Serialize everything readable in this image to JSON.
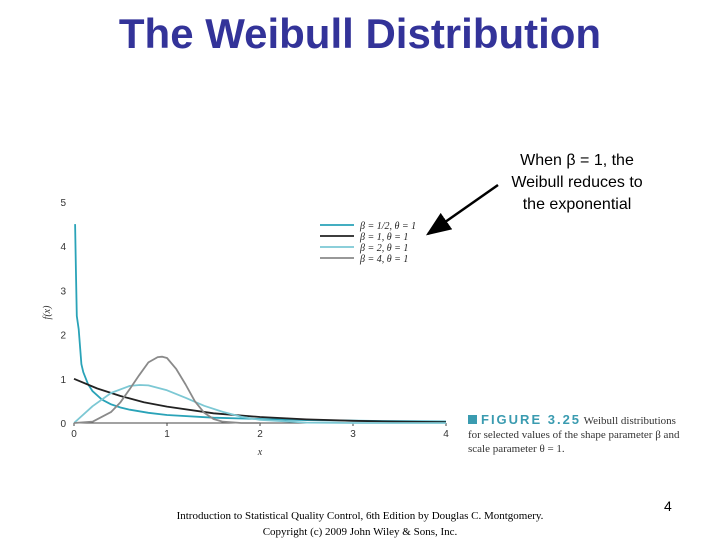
{
  "slide": {
    "title": "The Weibull Distribution",
    "callout": [
      "When β = 1, the",
      "Weibull reduces to",
      "the exponential"
    ],
    "figure_label": "FIGURE 3.25",
    "figure_caption": "Weibull distributions for selected values of the shape parameter β and scale parameter θ = 1.",
    "footer_line1": "Introduction to Statistical Quality Control, 6th Edition by Douglas C. Montgomery.",
    "footer_line2": "Copyright (c) 2009 John Wiley & Sons, Inc.",
    "page_number": "4"
  },
  "chart_data": {
    "type": "line",
    "xlabel": "x",
    "ylabel": "f(x)",
    "xlim": [
      0,
      4
    ],
    "ylim": [
      0,
      5
    ],
    "xticks": [
      0,
      1,
      2,
      3,
      4
    ],
    "yticks": [
      0,
      1,
      2,
      3,
      4,
      5
    ],
    "legend_position": "top-right",
    "series": [
      {
        "name": "β = 1/2, θ = 1",
        "color": "#2aa3b8",
        "x": [
          0.012,
          0.02,
          0.03,
          0.05,
          0.08,
          0.1,
          0.15,
          0.2,
          0.3,
          0.4,
          0.5,
          0.6,
          0.8,
          1.0,
          1.5,
          2.0,
          2.5,
          3.0,
          3.5,
          4.0
        ],
        "y": [
          4.5,
          3.47,
          2.42,
          2.12,
          1.33,
          1.15,
          0.88,
          0.72,
          0.53,
          0.42,
          0.35,
          0.3,
          0.23,
          0.18,
          0.12,
          0.09,
          0.065,
          0.051,
          0.04,
          0.034
        ]
      },
      {
        "name": "β = 1, θ = 1",
        "color": "#222222",
        "x": [
          0,
          0.25,
          0.5,
          0.75,
          1.0,
          1.5,
          2.0,
          2.5,
          3.0,
          3.5,
          4.0
        ],
        "y": [
          1.0,
          0.78,
          0.61,
          0.47,
          0.37,
          0.22,
          0.135,
          0.082,
          0.05,
          0.03,
          0.018
        ]
      },
      {
        "name": "β = 2, θ = 1",
        "color": "#7cc8d4",
        "x": [
          0,
          0.2,
          0.4,
          0.6,
          0.7071,
          0.8,
          1.0,
          1.2,
          1.4,
          1.6,
          1.8,
          2.0,
          2.5,
          3.0,
          4.0
        ],
        "y": [
          0,
          0.38,
          0.68,
          0.84,
          0.86,
          0.85,
          0.74,
          0.57,
          0.39,
          0.25,
          0.14,
          0.07,
          0.01,
          0.0,
          0.0
        ]
      },
      {
        "name": "β = 4, θ = 1",
        "color": "#8a8a8a",
        "x": [
          0,
          0.2,
          0.4,
          0.5,
          0.6,
          0.7,
          0.8,
          0.9,
          0.95,
          1.0,
          1.1,
          1.2,
          1.3,
          1.4,
          1.5,
          1.6,
          1.8,
          2.0
        ],
        "y": [
          0,
          0.03,
          0.25,
          0.47,
          0.77,
          1.08,
          1.37,
          1.49,
          1.5,
          1.47,
          1.22,
          0.87,
          0.49,
          0.23,
          0.09,
          0.03,
          0.0,
          0.0
        ]
      }
    ]
  }
}
